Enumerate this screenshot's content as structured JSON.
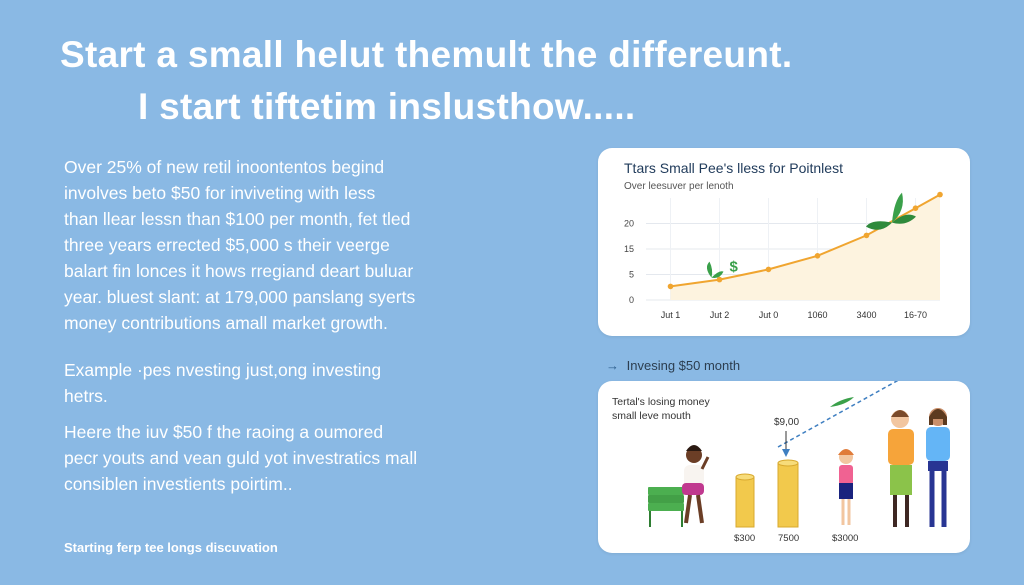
{
  "headline": {
    "line1": "Start a small helut themult the differeunt.",
    "line2": "I start tiftetim inslusthow....."
  },
  "paragraphs": {
    "p1": [
      "Over 25% of new retil inoontentos begind",
      "involves beto $50 for inviveting with less",
      "than llear lessn than $100 per month, fet tled",
      "three years errected $5,000 s their veerge",
      "balart fin lonces it hows rregiand deart buluar",
      "year. bluest slant: at 179,000 panslang syerts",
      "money contributions amall market growth."
    ],
    "p2": [
      "Example ·pes nvesting just,ong investing",
      "hetrs."
    ],
    "p3": [
      "Heere the iuv $50 f the raoing a oumored",
      "pecr youts and vean guld yot investratics mall",
      "consiblen investients poirtim.."
    ]
  },
  "footer_note": "Starting ferp tee longs discuvation",
  "chart_data": {
    "type": "line",
    "title": "Ttars Small Pee's lless for Poitnlest",
    "subtitle": "Over leesuver per lenoth",
    "y_tick_labels": [
      "0",
      "5",
      "15",
      "20"
    ],
    "x_tick_labels": [
      "Jut 1",
      "Jut 2",
      "Jut 0",
      "1060",
      "3400",
      "16-70"
    ],
    "x": [
      1,
      2,
      3,
      4,
      5,
      6
    ],
    "values": [
      4,
      6,
      9,
      13,
      19,
      27
    ],
    "end_value": 31,
    "ylim": [
      0,
      30
    ],
    "annotation": "$",
    "colors": {
      "line": "#f0a530",
      "fill": "#fdf3df",
      "leaf": "#3aa04a"
    }
  },
  "mid_label": "Invesing $50 month",
  "illustration": {
    "title_lines": [
      "Tertal's losing money",
      "small leve mouth"
    ],
    "price_tag": "$9,00",
    "coin_labels": [
      "$300",
      "7500",
      "$3000"
    ],
    "colors": {
      "coin": "#f2c94c",
      "coin_edge": "#d8a92e",
      "cash": "#4caf50",
      "arrow": "#3f7fc1"
    }
  }
}
